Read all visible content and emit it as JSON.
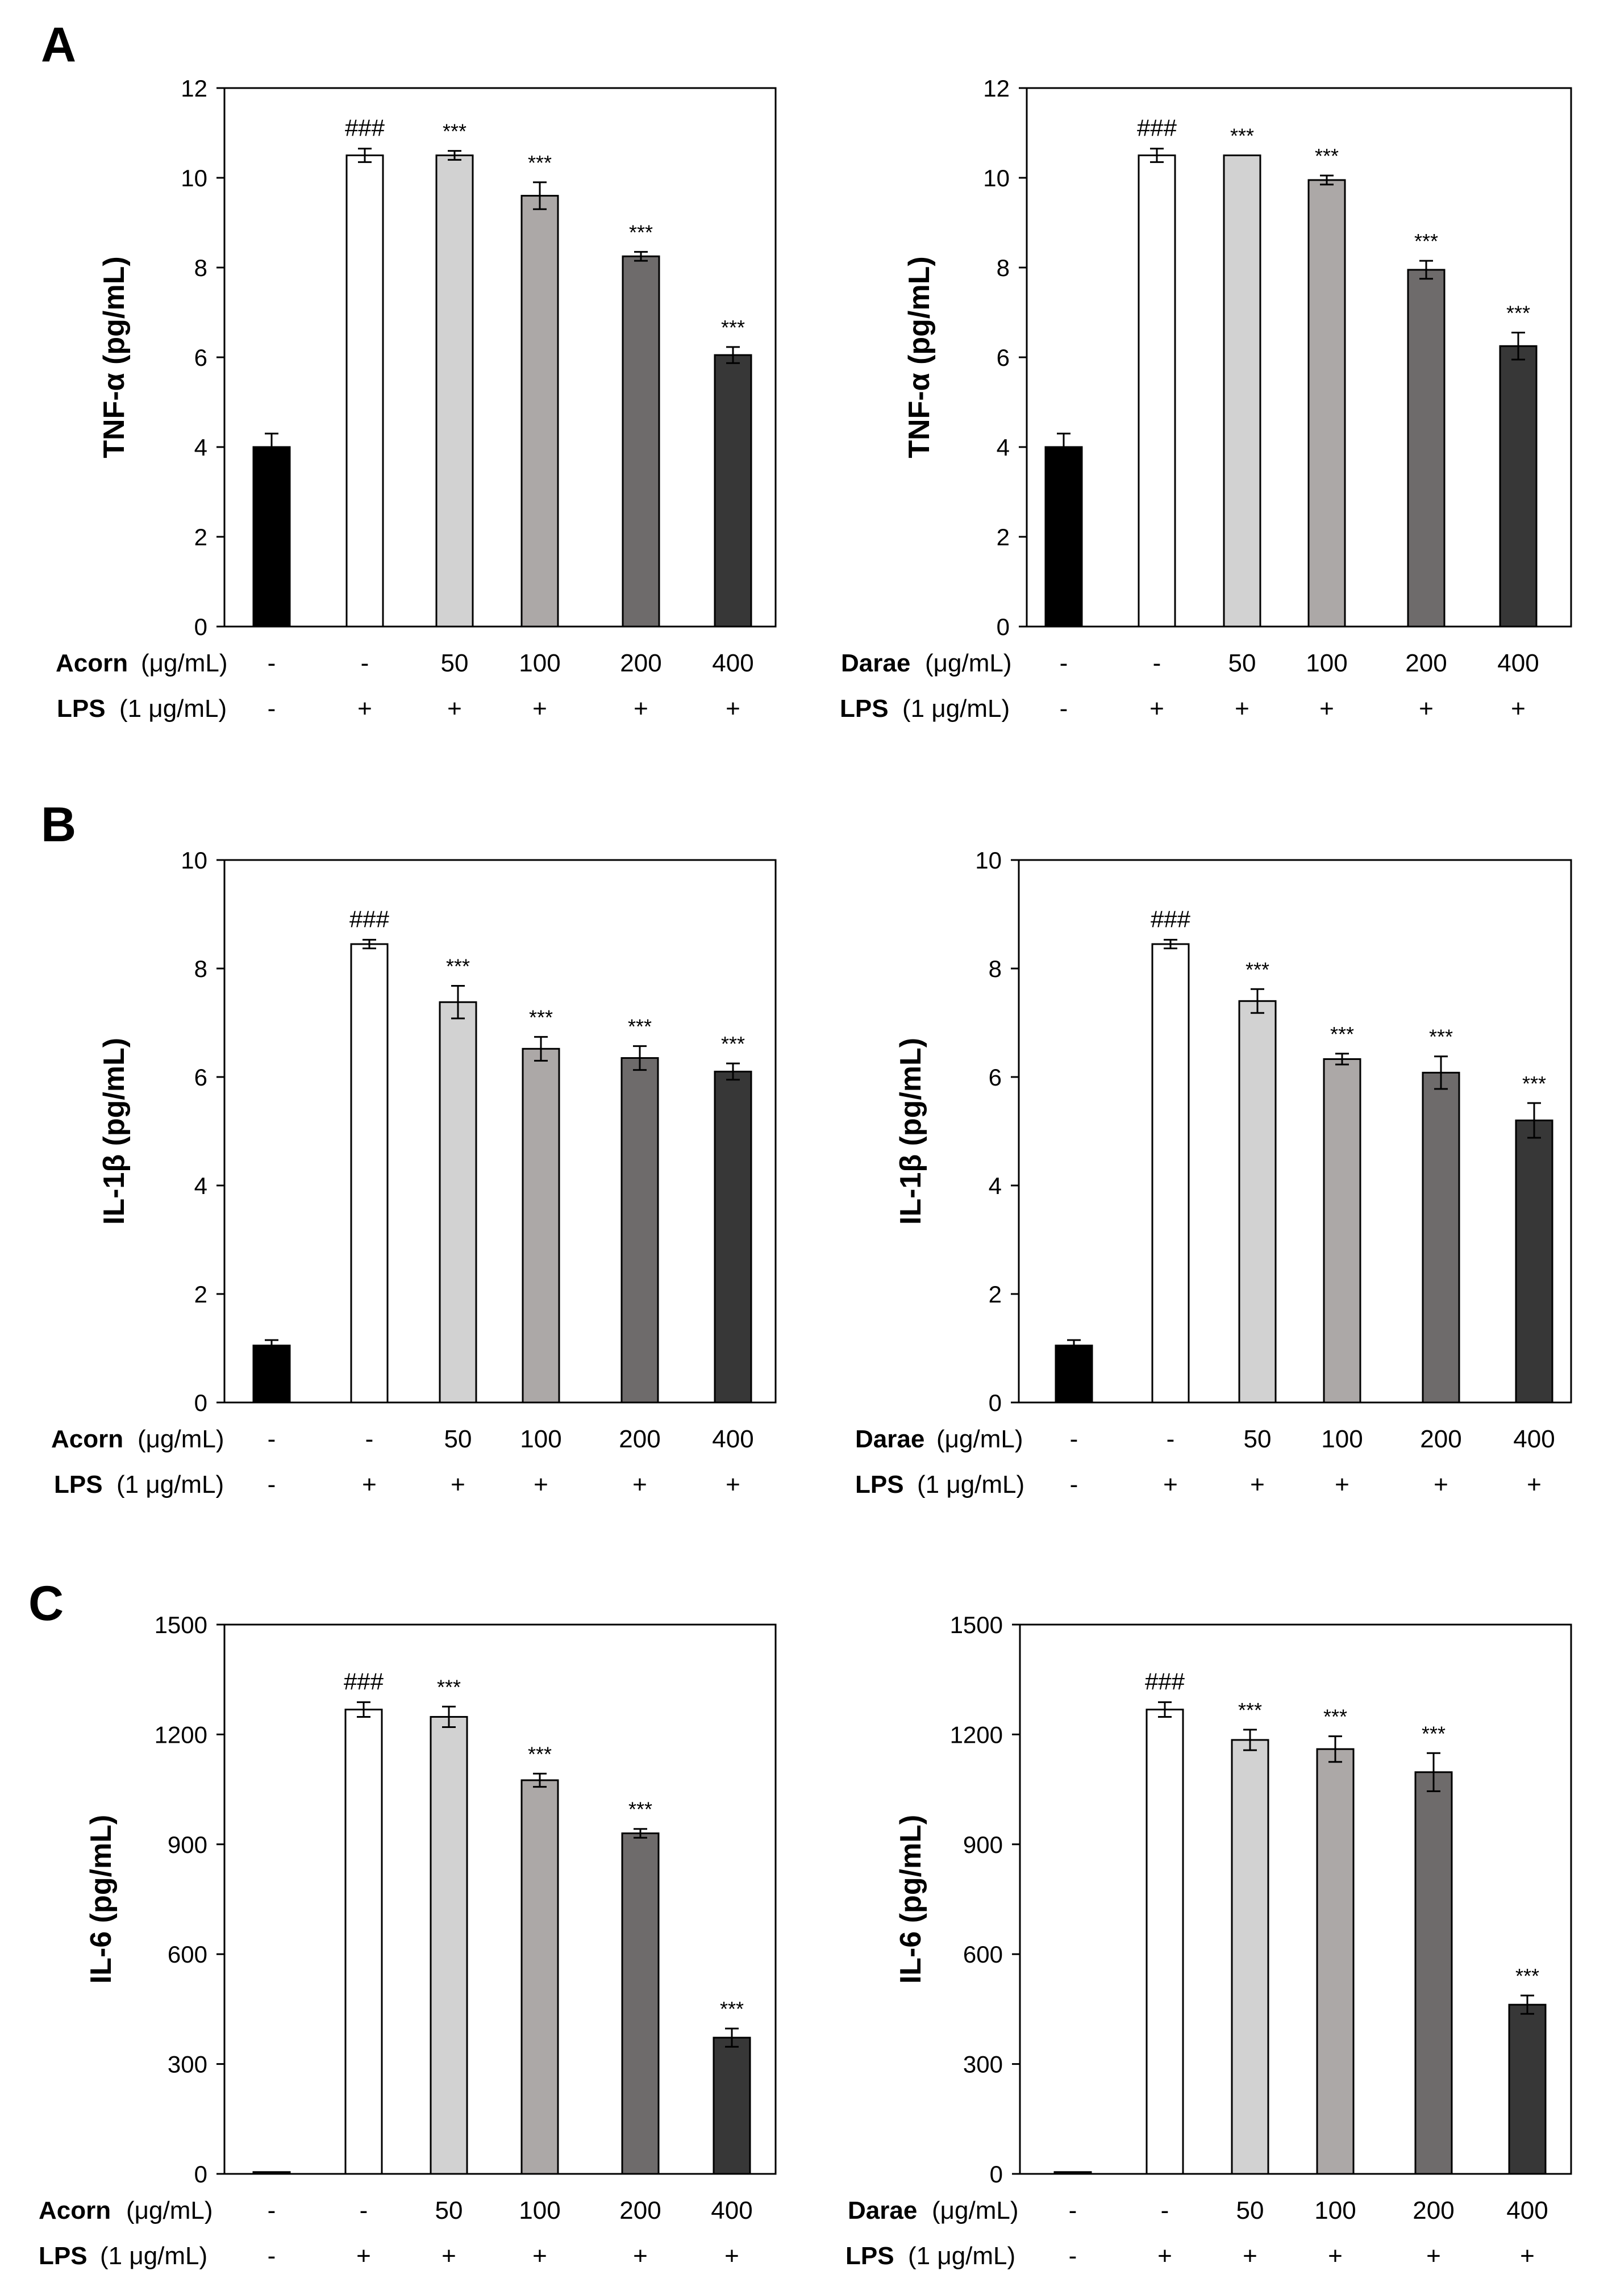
{
  "panels": [
    {
      "letter": "A"
    },
    {
      "letter": "B"
    },
    {
      "letter": "C"
    }
  ],
  "colors": {
    "bars": [
      "#000000",
      "#ffffff",
      "#d2d2d2",
      "#aca8a7",
      "#6e6b6b",
      "#373737"
    ],
    "outline": "#000000",
    "background": "#ffffff"
  },
  "row_labels": {
    "lps_bold": "LPS",
    "lps_unit": "(1 μg/mL)"
  },
  "chart_data": [
    {
      "type": "bar",
      "panel": "A",
      "title": "",
      "ylabel": "TNF-α (pg/mL)",
      "ylim": [
        0,
        12
      ],
      "yticks": [
        0,
        2,
        4,
        6,
        8,
        10,
        12
      ],
      "extract": "Acorn",
      "unit": "(μg/mL)",
      "categories": [
        "-",
        "-",
        "50",
        "100",
        "200",
        "400"
      ],
      "lps": [
        "-",
        "+",
        "+",
        "+",
        "+",
        "+"
      ],
      "values": [
        4.0,
        10.5,
        10.5,
        9.6,
        8.25,
        6.05
      ],
      "errors": [
        0.3,
        0.15,
        0.1,
        0.3,
        0.1,
        0.18
      ],
      "annotations": [
        "",
        "###",
        "***",
        "***",
        "***",
        "***"
      ]
    },
    {
      "type": "bar",
      "panel": "A",
      "title": "",
      "ylabel": "TNF-α (pg/mL)",
      "ylim": [
        0,
        12
      ],
      "yticks": [
        0,
        2,
        4,
        6,
        8,
        10,
        12
      ],
      "extract": "Darae",
      "unit": "(μg/mL)",
      "categories": [
        "-",
        "-",
        "50",
        "100",
        "200",
        "400"
      ],
      "lps": [
        "-",
        "+",
        "+",
        "+",
        "+",
        "+"
      ],
      "values": [
        4.0,
        10.5,
        10.5,
        9.95,
        7.95,
        6.25
      ],
      "errors": [
        0.3,
        0.15,
        0.0,
        0.1,
        0.2,
        0.3
      ],
      "annotations": [
        "",
        "###",
        "***",
        "***",
        "***",
        "***"
      ]
    },
    {
      "type": "bar",
      "panel": "B",
      "title": "",
      "ylabel": "IL-1β (pg/mL)",
      "ylim": [
        0,
        10
      ],
      "yticks": [
        0,
        2,
        4,
        6,
        8,
        10
      ],
      "extract": "Acorn",
      "unit": "(μg/mL)",
      "categories": [
        "-",
        "-",
        "50",
        "100",
        "200",
        "400"
      ],
      "lps": [
        "-",
        "+",
        "+",
        "+",
        "+",
        "+"
      ],
      "values": [
        1.05,
        8.45,
        7.38,
        6.52,
        6.35,
        6.1
      ],
      "errors": [
        0.1,
        0.08,
        0.3,
        0.22,
        0.22,
        0.15
      ],
      "annotations": [
        "",
        "###",
        "***",
        "***",
        "***",
        "***"
      ]
    },
    {
      "type": "bar",
      "panel": "B",
      "title": "",
      "ylabel": "IL-1β (pg/mL)",
      "ylim": [
        0,
        10
      ],
      "yticks": [
        0,
        2,
        4,
        6,
        8,
        10
      ],
      "extract": "Darae",
      "unit": "(μg/mL)",
      "categories": [
        "-",
        "-",
        "50",
        "100",
        "200",
        "400"
      ],
      "lps": [
        "-",
        "+",
        "+",
        "+",
        "+",
        "+"
      ],
      "values": [
        1.05,
        8.45,
        7.4,
        6.33,
        6.08,
        5.2
      ],
      "errors": [
        0.1,
        0.08,
        0.22,
        0.1,
        0.3,
        0.32
      ],
      "annotations": [
        "",
        "###",
        "***",
        "***",
        "***",
        "***"
      ]
    },
    {
      "type": "bar",
      "panel": "C",
      "title": "",
      "ylabel": "IL-6 (pg/mL)",
      "ylim": [
        0,
        1500
      ],
      "yticks": [
        0,
        300,
        600,
        900,
        1200,
        1500
      ],
      "extract": "Acorn",
      "unit": "(μg/mL)",
      "categories": [
        "-",
        "-",
        "50",
        "100",
        "200",
        "400"
      ],
      "lps": [
        "-",
        "+",
        "+",
        "+",
        "+",
        "+"
      ],
      "values": [
        5,
        1268,
        1248,
        1075,
        930,
        372
      ],
      "errors": [
        0,
        20,
        28,
        18,
        12,
        25
      ],
      "annotations": [
        "",
        "###",
        "***",
        "***",
        "***",
        "***"
      ]
    },
    {
      "type": "bar",
      "panel": "C",
      "title": "",
      "ylabel": "IL-6 (pg/mL)",
      "ylim": [
        0,
        1500
      ],
      "yticks": [
        0,
        300,
        600,
        900,
        1200,
        1500
      ],
      "extract": "Darae",
      "unit": "(μg/mL)",
      "categories": [
        "-",
        "-",
        "50",
        "100",
        "200",
        "400"
      ],
      "lps": [
        "-",
        "+",
        "+",
        "+",
        "+",
        "+"
      ],
      "values": [
        5,
        1268,
        1185,
        1160,
        1097,
        462
      ],
      "errors": [
        0,
        20,
        28,
        35,
        52,
        25
      ],
      "annotations": [
        "",
        "###",
        "***",
        "***",
        "***",
        "***"
      ]
    }
  ]
}
